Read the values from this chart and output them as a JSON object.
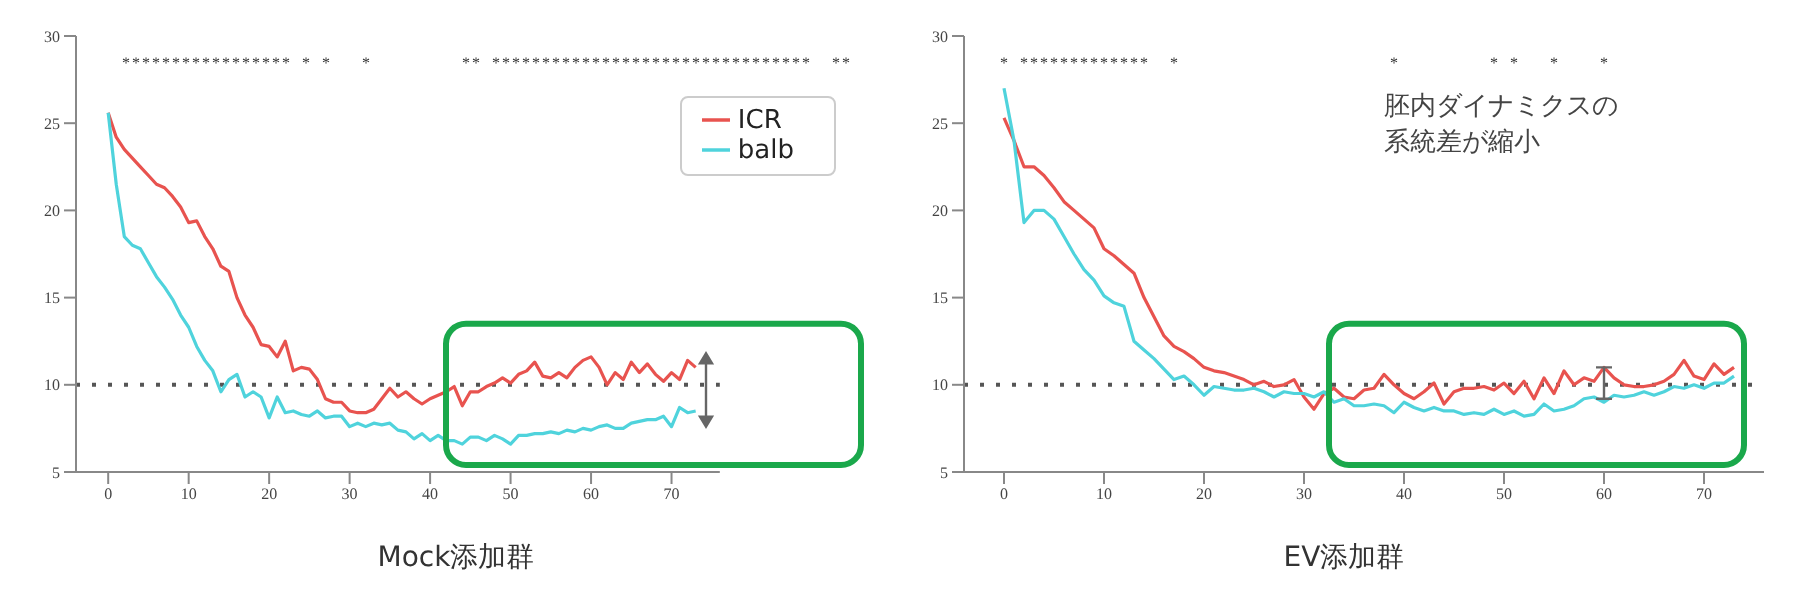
{
  "chart_data": [
    {
      "type": "line",
      "title": "Mock添加群",
      "x": [
        0,
        1,
        2,
        3,
        4,
        5,
        6,
        7,
        8,
        9,
        10,
        11,
        12,
        13,
        14,
        15,
        16,
        17,
        18,
        19,
        20,
        21,
        22,
        23,
        24,
        25,
        26,
        27,
        28,
        29,
        30,
        31,
        32,
        33,
        34,
        35,
        36,
        37,
        38,
        39,
        40,
        41,
        42,
        43,
        44,
        45,
        46,
        47,
        48,
        49,
        50,
        51,
        52,
        53,
        54,
        55,
        56,
        57,
        58,
        59,
        60,
        61,
        62,
        63,
        64,
        65,
        66,
        67,
        68,
        69,
        70,
        71,
        72,
        73
      ],
      "series": [
        {
          "name": "ICR",
          "color": "#e8534f",
          "values": [
            25.6,
            24.2,
            23.5,
            23,
            22.5,
            22,
            21.5,
            21.3,
            20.8,
            20.2,
            19.3,
            19.4,
            18.5,
            17.8,
            16.8,
            16.5,
            15,
            14,
            13.3,
            12.3,
            12.2,
            11.6,
            12.5,
            10.8,
            11,
            10.9,
            10.3,
            9.2,
            9,
            9,
            8.5,
            8.4,
            8.4,
            8.6,
            9.2,
            9.8,
            9.3,
            9.6,
            9.2,
            8.9,
            9.2,
            9.4,
            9.6,
            9.9,
            8.8,
            9.6,
            9.6,
            9.9,
            10.1,
            10.4,
            10.1,
            10.6,
            10.8,
            11.3,
            10.5,
            10.4,
            10.7,
            10.4,
            11,
            11.4,
            11.6,
            11,
            10,
            10.7,
            10.3,
            11.3,
            10.7,
            11.2,
            10.6,
            10.2,
            10.7,
            10.3,
            11.4,
            11
          ]
        },
        {
          "name": "balb",
          "color": "#4fd3dc",
          "values": [
            25.6,
            21.5,
            18.5,
            18,
            17.8,
            17,
            16.2,
            15.6,
            14.9,
            14,
            13.3,
            12.2,
            11.4,
            10.8,
            9.6,
            10.3,
            10.6,
            9.3,
            9.6,
            9.3,
            8.1,
            9.3,
            8.4,
            8.5,
            8.3,
            8.2,
            8.5,
            8.1,
            8.2,
            8.2,
            7.6,
            7.8,
            7.6,
            7.8,
            7.7,
            7.8,
            7.4,
            7.3,
            6.9,
            7.2,
            6.8,
            7.1,
            6.8,
            6.8,
            6.6,
            7,
            7,
            6.8,
            7.1,
            6.9,
            6.6,
            7.1,
            7.1,
            7.2,
            7.2,
            7.3,
            7.2,
            7.4,
            7.3,
            7.5,
            7.4,
            7.6,
            7.7,
            7.5,
            7.5,
            7.8,
            7.9,
            8,
            8,
            8.2,
            7.6,
            8.7,
            8.4,
            8.5
          ]
        }
      ],
      "xlim": [
        -4,
        76
      ],
      "xticks": [
        0,
        10,
        20,
        30,
        40,
        50,
        60,
        70
      ],
      "ylim": [
        5,
        30
      ],
      "yticks": [
        5,
        10,
        15,
        20,
        25,
        30
      ],
      "ref_lines": [
        {
          "axis": "y",
          "value": 10,
          "color": "#555555",
          "line_style": "dotted"
        }
      ],
      "legend": "top right",
      "grid": false,
      "marker": "none",
      "line_style": "solid",
      "annotations": [
        "*",
        "*",
        "*",
        "*",
        "*",
        "*",
        "*",
        "*",
        "*",
        "*",
        "*",
        "*",
        "*",
        "*",
        "*",
        "*",
        "*",
        "*",
        "*",
        "*",
        "*",
        "*",
        "*",
        "*",
        "*",
        "*",
        "*",
        "*",
        "*",
        "*",
        "*",
        "*",
        "*",
        "*",
        "*",
        "*",
        "*",
        "*",
        "*",
        "*",
        "*",
        "*",
        "*",
        "*",
        "*",
        "*",
        "*",
        "*",
        "*",
        "*",
        "*",
        "*",
        "*",
        "*",
        "*",
        "*"
      ]
    },
    {
      "type": "line",
      "title": "EV添加群",
      "x": [
        0,
        1,
        2,
        3,
        4,
        5,
        6,
        7,
        8,
        9,
        10,
        11,
        12,
        13,
        14,
        15,
        16,
        17,
        18,
        19,
        20,
        21,
        22,
        23,
        24,
        25,
        26,
        27,
        28,
        29,
        30,
        31,
        32,
        33,
        34,
        35,
        36,
        37,
        38,
        39,
        40,
        41,
        42,
        43,
        44,
        45,
        46,
        47,
        48,
        49,
        50,
        51,
        52,
        53,
        54,
        55,
        56,
        57,
        58,
        59,
        60,
        61,
        62,
        63,
        64,
        65,
        66,
        67,
        68,
        69,
        70,
        71,
        72,
        73
      ],
      "series": [
        {
          "color": "#e8534f",
          "values": [
            25.3,
            24,
            22.5,
            22.5,
            22,
            21.3,
            20.5,
            20,
            19.5,
            19,
            17.8,
            17.4,
            16.9,
            16.4,
            15,
            13.9,
            12.8,
            12.2,
            11.9,
            11.5,
            11,
            10.8,
            10.7,
            10.5,
            10.3,
            10,
            10.2,
            9.9,
            10,
            10.3,
            9.3,
            8.6,
            9.5,
            9.8,
            9.3,
            9.2,
            9.7,
            9.8,
            10.6,
            10,
            9.5,
            9.2,
            9.6,
            10.1,
            8.9,
            9.6,
            9.8,
            9.8,
            9.9,
            9.7,
            10.1,
            9.5,
            10.2,
            9.2,
            10.4,
            9.5,
            10.8,
            10,
            10.4,
            10.2,
            11,
            10.4,
            10,
            9.9,
            9.9,
            10,
            10.2,
            10.6,
            11.4,
            10.5,
            10.3,
            11.2,
            10.6,
            11
          ]
        },
        {
          "color": "#4fd3dc",
          "values": [
            27,
            24,
            19.3,
            20,
            20,
            19.5,
            18.5,
            17.5,
            16.6,
            16,
            15.1,
            14.7,
            14.5,
            12.5,
            12,
            11.5,
            10.9,
            10.3,
            10.5,
            10,
            9.4,
            9.9,
            9.8,
            9.7,
            9.7,
            9.8,
            9.6,
            9.3,
            9.6,
            9.5,
            9.5,
            9.3,
            9.6,
            9,
            9.2,
            8.8,
            8.8,
            8.9,
            8.8,
            8.4,
            9,
            8.7,
            8.5,
            8.7,
            8.5,
            8.5,
            8.3,
            8.4,
            8.3,
            8.6,
            8.3,
            8.5,
            8.2,
            8.3,
            8.9,
            8.5,
            8.6,
            8.8,
            9.2,
            9.3,
            9,
            9.4,
            9.3,
            9.4,
            9.6,
            9.4,
            9.6,
            9.9,
            9.8,
            10,
            9.8,
            10.1,
            10.1,
            10.5
          ]
        }
      ],
      "xlim": [
        -4,
        76
      ],
      "xticks": [
        0,
        10,
        20,
        30,
        40,
        50,
        60,
        70
      ],
      "ylim": [
        5,
        30
      ],
      "yticks": [
        5,
        10,
        15,
        20,
        25,
        30
      ],
      "ref_lines": [
        {
          "axis": "y",
          "value": 10,
          "color": "#555555",
          "line_style": "dotted"
        }
      ],
      "grid": false,
      "marker": "none",
      "line_style": "solid",
      "annotations": [
        "胚内ダイナミクスの系統差が縮小",
        "*",
        "*",
        "*",
        "*",
        "*",
        "*",
        "*",
        "*",
        "*",
        "*",
        "*",
        "*",
        "*",
        "*",
        "*",
        "*",
        "*",
        "*",
        "*",
        "*"
      ]
    }
  ]
}
